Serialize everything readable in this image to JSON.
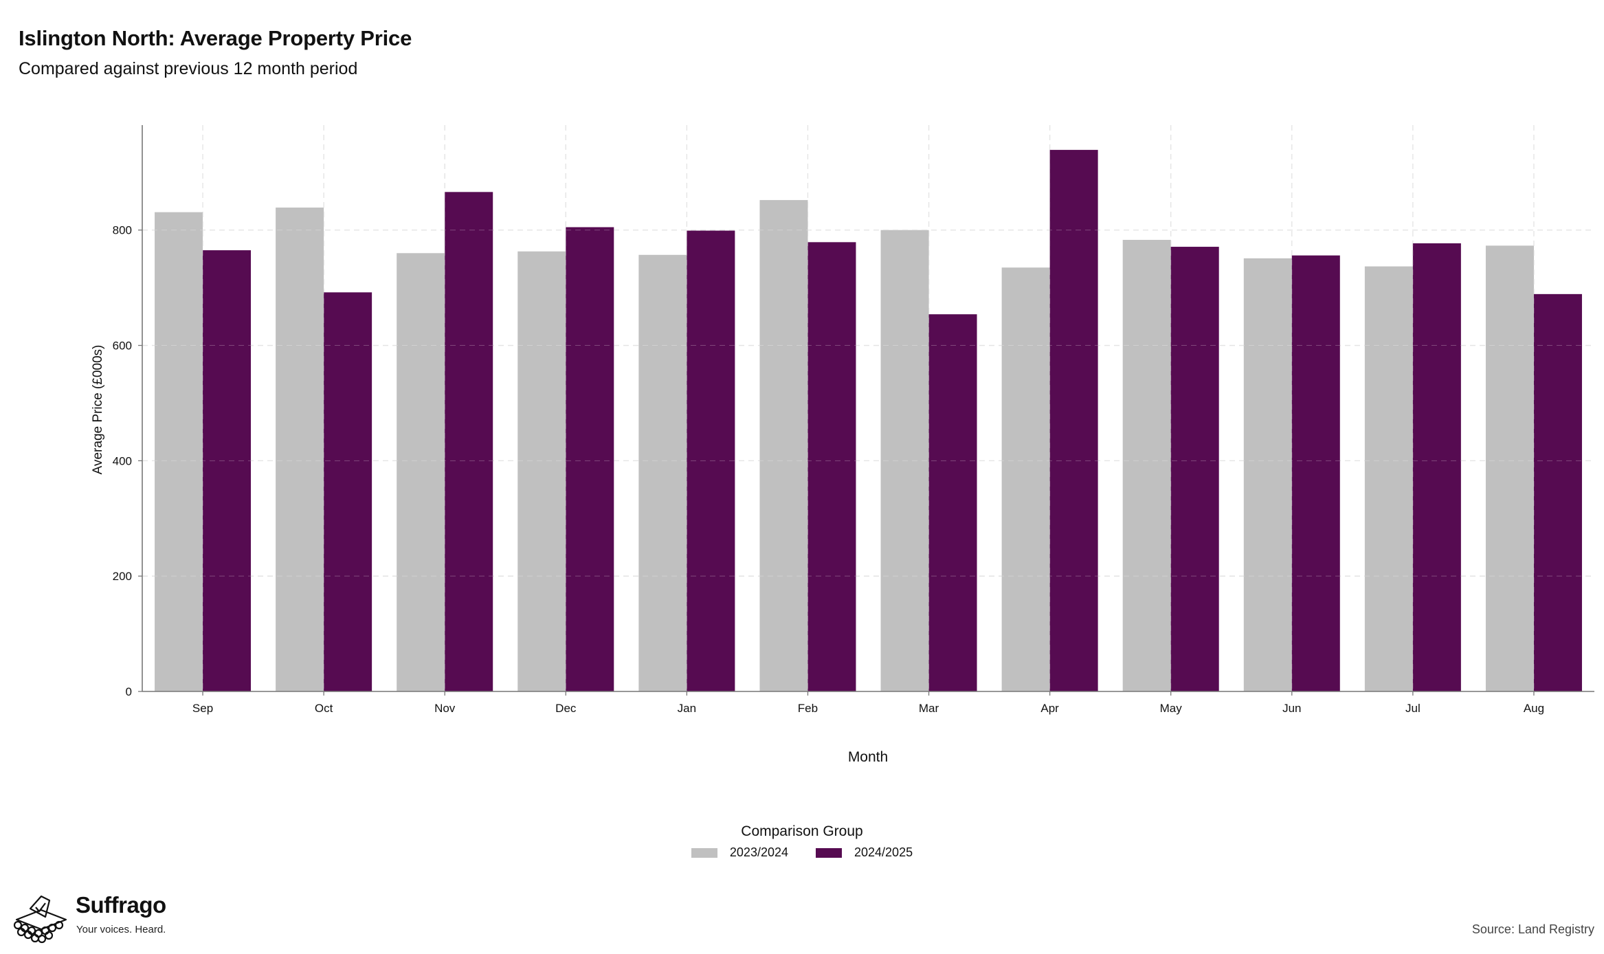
{
  "header": {
    "title": "Islington North: Average Property Price",
    "subtitle": "Compared against previous 12 month period"
  },
  "chart_data": {
    "type": "bar",
    "categories": [
      "Sep",
      "Oct",
      "Nov",
      "Dec",
      "Jan",
      "Feb",
      "Mar",
      "Apr",
      "May",
      "Jun",
      "Jul",
      "Aug"
    ],
    "series": [
      {
        "name": "2023/2024",
        "color": "#c0c0c0",
        "values": [
          831,
          839,
          760,
          763,
          757,
          852,
          800,
          735,
          783,
          751,
          737,
          773
        ]
      },
      {
        "name": "2024/2025",
        "color": "#560b51",
        "values": [
          765,
          692,
          866,
          805,
          799,
          779,
          654,
          939,
          771,
          756,
          777,
          689
        ]
      }
    ],
    "xlabel": "Month",
    "ylabel": "Average Price (£000s)",
    "ylim": [
      0,
      982
    ],
    "yticks": [
      0,
      200,
      400,
      600,
      800
    ],
    "grid": true,
    "legend_title": "Comparison Group",
    "legend_position": "bottom"
  },
  "branding": {
    "name": "Suffrago",
    "tagline": "Your voices. Heard.",
    "logo_icon": "ballot-box-icon"
  },
  "footer": {
    "source": "Source: Land Registry"
  }
}
